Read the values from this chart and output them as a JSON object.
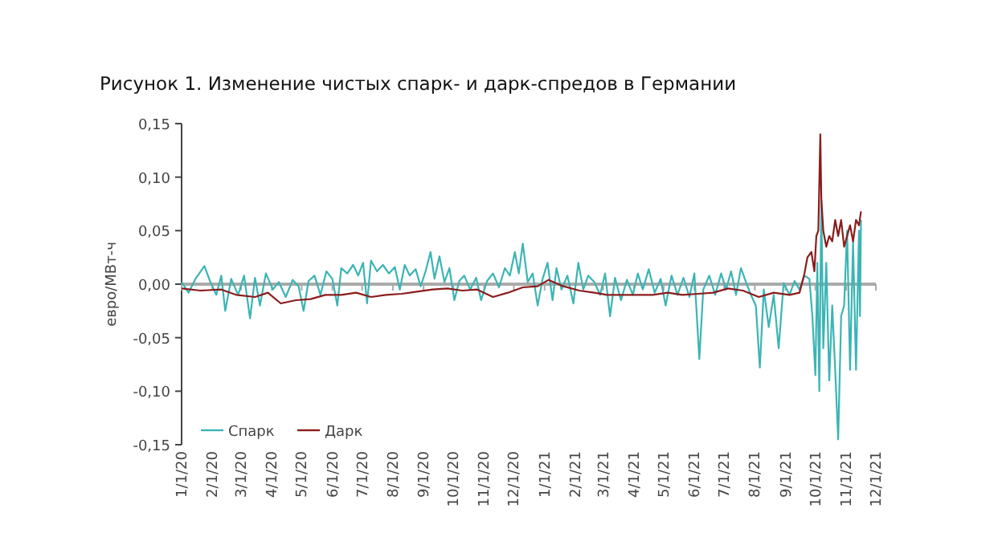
{
  "chart_data": {
    "type": "line",
    "title": "Рисунок 1. Изменение чистых спарк- и дарк-спредов в Германии",
    "ylabel": "евро/МВт-ч",
    "xlim": [
      "2020-01-01",
      "2021-12-01"
    ],
    "xticks": [
      {
        "value": "2020-01-01",
        "label": "1/1/20"
      },
      {
        "value": "2020-02-01",
        "label": "2/1/20"
      },
      {
        "value": "2020-03-01",
        "label": "3/1/20"
      },
      {
        "value": "2020-04-01",
        "label": "4/1/20"
      },
      {
        "value": "2020-05-01",
        "label": "5/1/20"
      },
      {
        "value": "2020-06-01",
        "label": "6/1/20"
      },
      {
        "value": "2020-07-01",
        "label": "7/1/20"
      },
      {
        "value": "2020-08-01",
        "label": "8/1/20"
      },
      {
        "value": "2020-09-01",
        "label": "9/1/20"
      },
      {
        "value": "2020-10-01",
        "label": "10/1/20"
      },
      {
        "value": "2020-11-01",
        "label": "11/1/20"
      },
      {
        "value": "2020-12-01",
        "label": "12/1/20"
      },
      {
        "value": "2021-01-01",
        "label": "1/1/21"
      },
      {
        "value": "2021-02-01",
        "label": "2/1/21"
      },
      {
        "value": "2021-03-01",
        "label": "3/1/21"
      },
      {
        "value": "2021-04-01",
        "label": "4/1/21"
      },
      {
        "value": "2021-05-01",
        "label": "5/1/21"
      },
      {
        "value": "2021-06-01",
        "label": "6/1/21"
      },
      {
        "value": "2021-07-01",
        "label": "7/1/21"
      },
      {
        "value": "2021-08-01",
        "label": "8/1/21"
      },
      {
        "value": "2021-09-01",
        "label": "9/1/21"
      },
      {
        "value": "2021-10-01",
        "label": "10/1/21"
      },
      {
        "value": "2021-11-01",
        "label": "11/1/21"
      },
      {
        "value": "2021-12-01",
        "label": "12/1/21"
      }
    ],
    "ylim": [
      -0.15,
      0.15
    ],
    "yticks": [
      {
        "value": -0.15,
        "label": "-0,15"
      },
      {
        "value": -0.1,
        "label": "-0,10"
      },
      {
        "value": -0.05,
        "label": "-0,05"
      },
      {
        "value": 0,
        "label": "0,00"
      },
      {
        "value": 0.05,
        "label": "0,05"
      },
      {
        "value": 0.1,
        "label": "0,10"
      },
      {
        "value": 0.15,
        "label": "0,15"
      }
    ],
    "grid": false,
    "ref_lines": [
      {
        "axis": "y",
        "value": 0,
        "color": "#aaaaaa"
      }
    ],
    "legend": "bottom left",
    "marker": "none",
    "line_style": "solid",
    "series": [
      {
        "name": "Спарк",
        "color": "#3cb4b4",
        "x": [
          "2020-01-01",
          "2020-01-08",
          "2020-01-15",
          "2020-01-24",
          "2020-01-30",
          "2020-02-05",
          "2020-02-10",
          "2020-02-14",
          "2020-02-20",
          "2020-02-27",
          "2020-03-04",
          "2020-03-10",
          "2020-03-15",
          "2020-03-20",
          "2020-03-26",
          "2020-04-02",
          "2020-04-08",
          "2020-04-15",
          "2020-04-22",
          "2020-04-28",
          "2020-05-03",
          "2020-05-08",
          "2020-05-14",
          "2020-05-20",
          "2020-05-26",
          "2020-06-01",
          "2020-06-06",
          "2020-06-10",
          "2020-06-16",
          "2020-06-22",
          "2020-06-27",
          "2020-07-02",
          "2020-07-06",
          "2020-07-10",
          "2020-07-16",
          "2020-07-22",
          "2020-07-28",
          "2020-08-03",
          "2020-08-08",
          "2020-08-13",
          "2020-08-18",
          "2020-08-24",
          "2020-08-29",
          "2020-09-03",
          "2020-09-08",
          "2020-09-12",
          "2020-09-17",
          "2020-09-22",
          "2020-09-27",
          "2020-10-02",
          "2020-10-07",
          "2020-10-12",
          "2020-10-18",
          "2020-10-24",
          "2020-10-29",
          "2020-11-04",
          "2020-11-10",
          "2020-11-16",
          "2020-11-22",
          "2020-11-27",
          "2020-12-02",
          "2020-12-06",
          "2020-12-10",
          "2020-12-15",
          "2020-12-20",
          "2020-12-25",
          "2020-12-30",
          "2021-01-04",
          "2021-01-09",
          "2021-01-13",
          "2021-01-18",
          "2021-01-24",
          "2021-01-30",
          "2021-02-04",
          "2021-02-09",
          "2021-02-14",
          "2021-02-20",
          "2021-02-26",
          "2021-03-03",
          "2021-03-08",
          "2021-03-13",
          "2021-03-19",
          "2021-03-25",
          "2021-03-31",
          "2021-04-05",
          "2021-04-10",
          "2021-04-16",
          "2021-04-22",
          "2021-04-28",
          "2021-05-03",
          "2021-05-09",
          "2021-05-15",
          "2021-05-21",
          "2021-05-27",
          "2021-06-01",
          "2021-06-06",
          "2021-06-10",
          "2021-06-16",
          "2021-06-22",
          "2021-06-28",
          "2021-07-03",
          "2021-07-08",
          "2021-07-13",
          "2021-07-18",
          "2021-07-23",
          "2021-07-28",
          "2021-08-02",
          "2021-08-06",
          "2021-08-10",
          "2021-08-15",
          "2021-08-20",
          "2021-08-25",
          "2021-08-30",
          "2021-09-05",
          "2021-09-10",
          "2021-09-15",
          "2021-09-20",
          "2021-09-25",
          "2021-09-28",
          "2021-10-01",
          "2021-10-03",
          "2021-10-05",
          "2021-10-07",
          "2021-10-09",
          "2021-10-12",
          "2021-10-15",
          "2021-10-18",
          "2021-10-21",
          "2021-10-24",
          "2021-10-27",
          "2021-10-30",
          "2021-11-02",
          "2021-11-05",
          "2021-11-08",
          "2021-11-11",
          "2021-11-14",
          "2021-11-15",
          "2021-11-16"
        ],
        "values": [
          0.002,
          -0.008,
          0.005,
          0.017,
          0.002,
          -0.01,
          0.008,
          -0.025,
          0.005,
          -0.01,
          0.008,
          -0.032,
          0.006,
          -0.02,
          0.01,
          -0.005,
          0.002,
          -0.012,
          0.004,
          -0.002,
          -0.025,
          0.003,
          0.008,
          -0.01,
          0.012,
          0.005,
          -0.02,
          0.015,
          0.01,
          0.018,
          0.008,
          0.02,
          -0.018,
          0.022,
          0.012,
          0.018,
          0.01,
          0.016,
          -0.005,
          0.018,
          0.008,
          0.014,
          -0.002,
          0.012,
          0.03,
          0.005,
          0.026,
          0.002,
          0.015,
          -0.015,
          0.003,
          0.008,
          -0.005,
          0.006,
          -0.015,
          0.003,
          0.01,
          -0.003,
          0.015,
          0.008,
          0.03,
          0.01,
          0.038,
          0.002,
          0.01,
          -0.02,
          0.005,
          0.02,
          -0.015,
          0.015,
          -0.005,
          0.008,
          -0.018,
          0.02,
          -0.005,
          0.008,
          0.002,
          -0.01,
          0.01,
          -0.03,
          0.006,
          -0.015,
          0.004,
          -0.01,
          0.01,
          -0.005,
          0.014,
          -0.008,
          0.005,
          -0.02,
          0.008,
          -0.01,
          0.006,
          -0.012,
          0.01,
          -0.07,
          -0.005,
          0.008,
          -0.01,
          0.01,
          -0.005,
          0.012,
          -0.01,
          0.015,
          0.002,
          -0.01,
          -0.02,
          -0.078,
          -0.005,
          -0.04,
          -0.01,
          -0.06,
          0.001,
          -0.01,
          0.003,
          -0.005,
          0.008,
          0.005,
          -0.03,
          -0.085,
          0.02,
          -0.1,
          0.078,
          -0.06,
          0.02,
          -0.09,
          -0.02,
          -0.08,
          -0.145,
          -0.03,
          -0.02,
          0.05,
          -0.08,
          0.04,
          -0.08,
          0.05,
          -0.03,
          0.06
        ]
      },
      {
        "name": "Дарк",
        "color": "#8b1c1c",
        "x": [
          "2020-01-01",
          "2020-01-20",
          "2020-02-10",
          "2020-02-25",
          "2020-03-15",
          "2020-03-28",
          "2020-04-10",
          "2020-04-25",
          "2020-05-10",
          "2020-05-25",
          "2020-06-10",
          "2020-06-25",
          "2020-07-10",
          "2020-07-25",
          "2020-08-10",
          "2020-08-25",
          "2020-09-10",
          "2020-09-25",
          "2020-10-10",
          "2020-10-25",
          "2020-11-10",
          "2020-11-25",
          "2020-12-10",
          "2020-12-25",
          "2021-01-05",
          "2021-01-20",
          "2021-02-05",
          "2021-02-20",
          "2021-03-05",
          "2021-03-20",
          "2021-04-05",
          "2021-04-20",
          "2021-05-05",
          "2021-05-20",
          "2021-06-05",
          "2021-06-20",
          "2021-07-05",
          "2021-07-20",
          "2021-08-05",
          "2021-08-20",
          "2021-09-05",
          "2021-09-15",
          "2021-09-20",
          "2021-09-23",
          "2021-09-27",
          "2021-09-30",
          "2021-10-02",
          "2021-10-04",
          "2021-10-06",
          "2021-10-07",
          "2021-10-09",
          "2021-10-12",
          "2021-10-15",
          "2021-10-18",
          "2021-10-21",
          "2021-10-24",
          "2021-10-27",
          "2021-10-30",
          "2021-11-02",
          "2021-11-05",
          "2021-11-08",
          "2021-11-11",
          "2021-11-14",
          "2021-11-16"
        ],
        "values": [
          -0.004,
          -0.006,
          -0.005,
          -0.01,
          -0.012,
          -0.008,
          -0.018,
          -0.015,
          -0.014,
          -0.01,
          -0.01,
          -0.008,
          -0.012,
          -0.01,
          -0.009,
          -0.007,
          -0.005,
          -0.004,
          -0.006,
          -0.005,
          -0.012,
          -0.008,
          -0.003,
          -0.002,
          0.004,
          -0.002,
          -0.006,
          -0.008,
          -0.01,
          -0.01,
          -0.01,
          -0.01,
          -0.008,
          -0.01,
          -0.009,
          -0.008,
          -0.004,
          -0.006,
          -0.012,
          -0.008,
          -0.01,
          -0.008,
          0.01,
          0.025,
          0.03,
          0.012,
          0.045,
          0.05,
          0.14,
          0.08,
          0.05,
          0.035,
          0.045,
          0.04,
          0.06,
          0.045,
          0.06,
          0.035,
          0.045,
          0.055,
          0.04,
          0.06,
          0.055,
          0.068
        ]
      }
    ]
  }
}
